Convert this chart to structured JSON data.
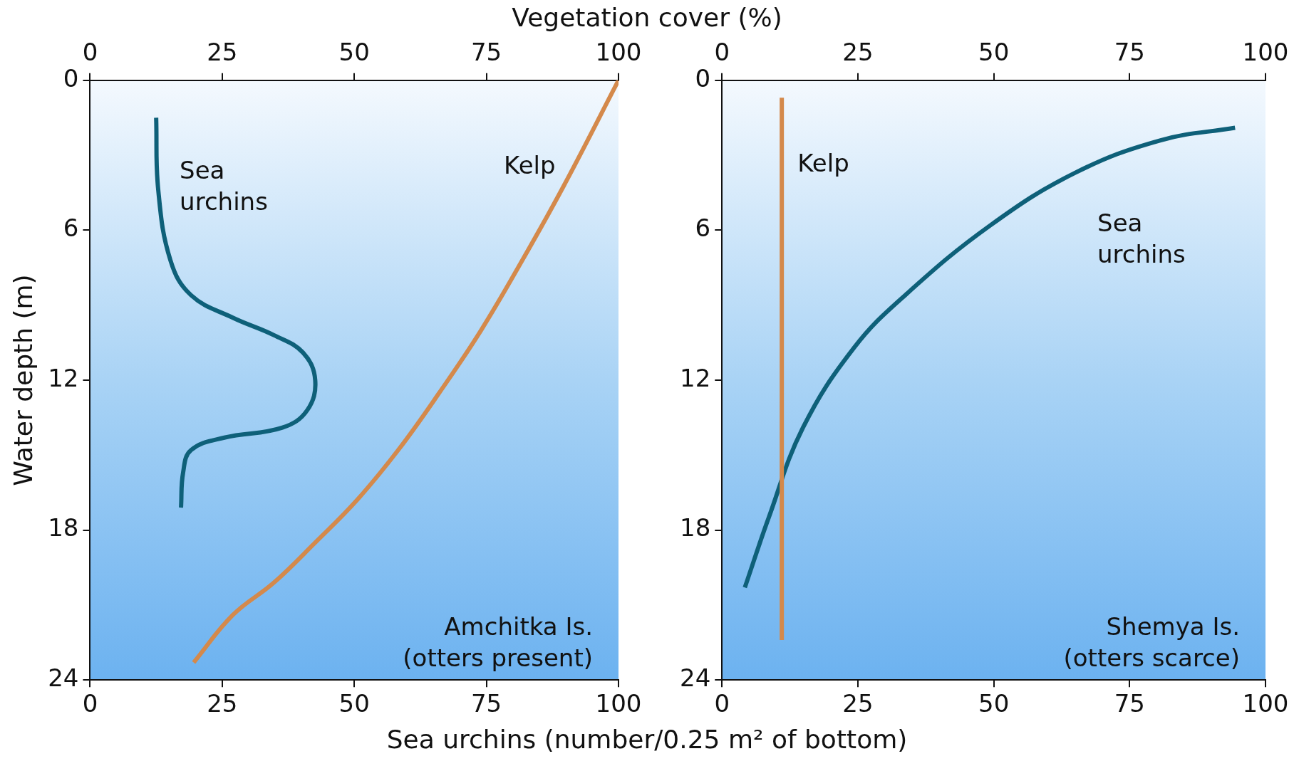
{
  "chart_data": [
    {
      "type": "line",
      "x2label": "Vegetation cover (%)",
      "xlabel": "Sea urchins (number/0.25 m² of bottom)",
      "ylabel": "Water depth (m)",
      "xlim": [
        0,
        100
      ],
      "xticks": [
        0,
        25,
        50,
        75,
        100
      ],
      "x2lim": [
        0,
        100
      ],
      "x2ticks": [
        0,
        25,
        50,
        75,
        100
      ],
      "ylim": [
        24,
        0
      ],
      "yticks": [
        0,
        6,
        12,
        18,
        24
      ],
      "grid": false,
      "legend": false,
      "marker": "none",
      "series": [
        {
          "name": "Sea urchins",
          "color": "#0e6079",
          "x": [
            12.5,
            12.9,
            15.2,
            19.1,
            27,
            34.8,
            40.3,
            42.6,
            41.1,
            36.4,
            25.4,
            19.1,
            17.6,
            17.2
          ],
          "values": [
            1.5,
            4.4,
            7.2,
            8.6,
            9.5,
            10.2,
            10.9,
            12.0,
            13.2,
            13.9,
            14.3,
            14.8,
            15.7,
            17.1
          ]
        },
        {
          "name": "Kelp",
          "color": "#d4894b",
          "axis": "x2",
          "x": [
            100,
            89.7,
            81.8,
            74,
            66.1,
            58.3,
            50.5,
            42.6,
            34.8,
            27,
            19.6
          ],
          "values": [
            0,
            4.2,
            7.2,
            10,
            12.5,
            14.8,
            16.8,
            18.5,
            20.1,
            21.4,
            23.3
          ]
        }
      ],
      "annotations": [
        "Amchitka Is.",
        "(otters present)"
      ]
    },
    {
      "type": "line",
      "xlim": [
        0,
        100
      ],
      "xticks": [
        0,
        25,
        50,
        75,
        100
      ],
      "x2lim": [
        0,
        100
      ],
      "x2ticks": [
        0,
        25,
        50,
        75,
        100
      ],
      "ylim": [
        24,
        0
      ],
      "yticks": [
        0,
        6,
        12,
        18,
        24
      ],
      "grid": false,
      "legend": false,
      "marker": "none",
      "series": [
        {
          "name": "Kelp",
          "color": "#d4894b",
          "axis": "x2",
          "x": [
            11,
            11
          ],
          "values": [
            0.7,
            22.4
          ]
        },
        {
          "name": "Sea urchins",
          "color": "#0e6079",
          "x": [
            4.2,
            8.6,
            14.9,
            24.3,
            33.7,
            49.4,
            65,
            80.7,
            94.4
          ],
          "values": [
            20.3,
            17.5,
            13.9,
            10.7,
            8.6,
            5.8,
            3.7,
            2.4,
            1.9
          ]
        }
      ],
      "annotations": [
        "Shemya Is.",
        "(otters scarce)"
      ]
    }
  ]
}
